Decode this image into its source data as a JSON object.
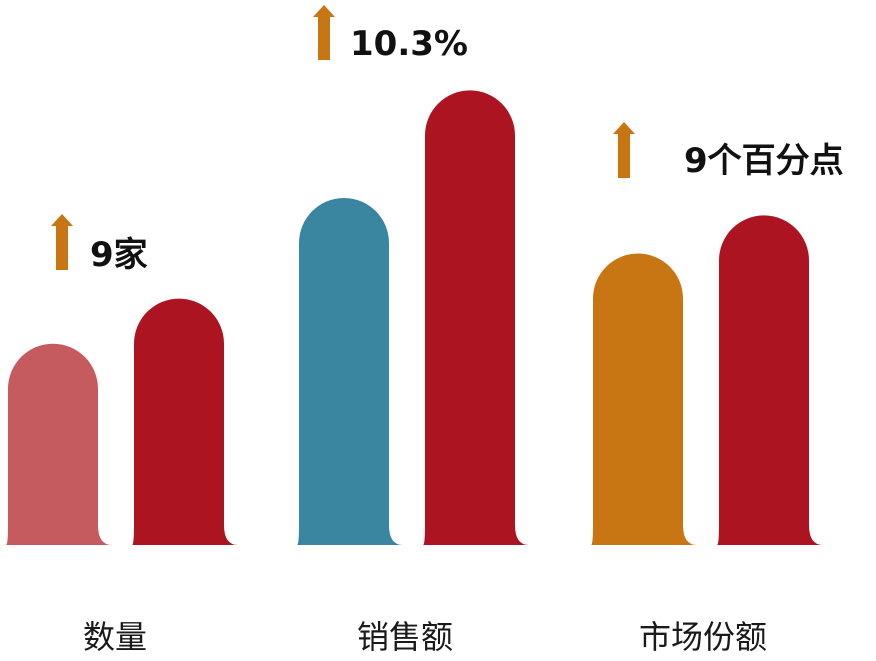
{
  "chart_data": {
    "type": "bar",
    "title": "",
    "xlabel": "",
    "ylabel": "",
    "grid": false,
    "legend": "none",
    "categories": [
      "数量",
      "销售额",
      "市场份额"
    ],
    "groups": [
      {
        "category": "数量",
        "annotation": "9家",
        "bars": [
          {
            "value": 0.58,
            "color": "#C55A5F"
          },
          {
            "value": 0.71,
            "color": "#AD1421"
          }
        ]
      },
      {
        "category": "销售额",
        "annotation": "10.3%",
        "bars": [
          {
            "value": 1.0,
            "color": "#3A86A0"
          },
          {
            "value": 1.31,
            "color": "#AD1421"
          }
        ]
      },
      {
        "category": "市场份额",
        "annotation": "9个百分点",
        "bars": [
          {
            "value": 0.84,
            "color": "#C87614"
          },
          {
            "value": 0.95,
            "color": "#AD1421"
          }
        ]
      }
    ],
    "annotation_arrow_color": "#C87614"
  }
}
